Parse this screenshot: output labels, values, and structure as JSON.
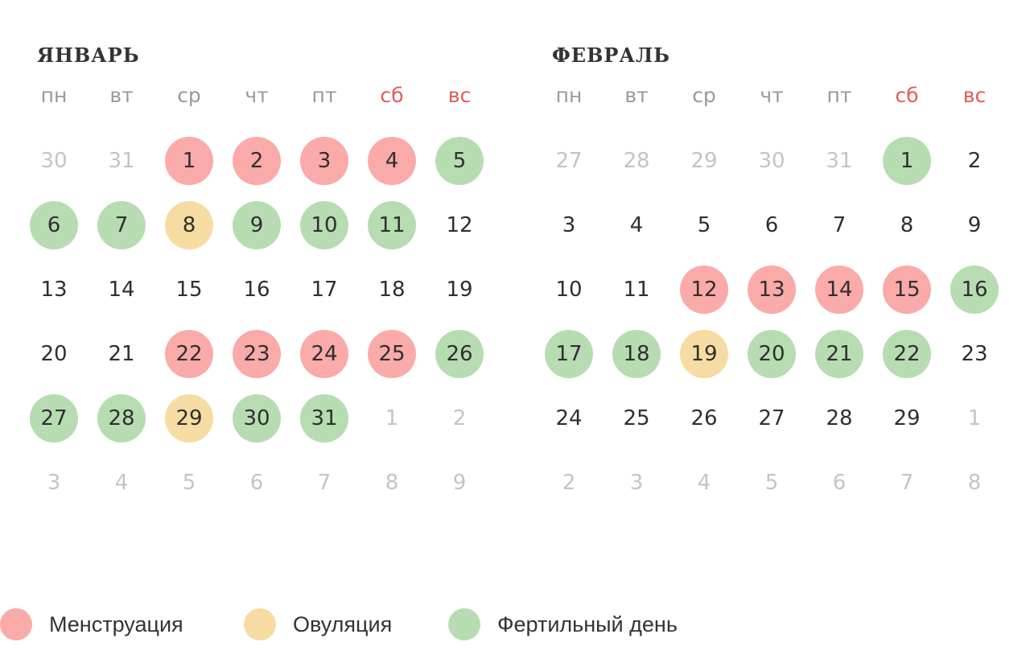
{
  "colors": {
    "menstruation": "#f9aaa9",
    "ovulation": "#f6dca2",
    "fertile": "#b7dcb2",
    "weekend_label": "#e25a57",
    "weekday_label": "#999999",
    "day_text": "#2f2f2f",
    "other_month_text": "#c4c4c4"
  },
  "weekdays": [
    {
      "label": "пн",
      "weekend": false
    },
    {
      "label": "вт",
      "weekend": false
    },
    {
      "label": "ср",
      "weekend": false
    },
    {
      "label": "чт",
      "weekend": false
    },
    {
      "label": "пт",
      "weekend": false
    },
    {
      "label": "сб",
      "weekend": true
    },
    {
      "label": "вс",
      "weekend": true
    }
  ],
  "months": [
    {
      "title": "ЯНВАРЬ",
      "weeks": [
        [
          {
            "d": "30",
            "other": true
          },
          {
            "d": "31",
            "other": true
          },
          {
            "d": "1",
            "t": "m"
          },
          {
            "d": "2",
            "t": "m"
          },
          {
            "d": "3",
            "t": "m"
          },
          {
            "d": "4",
            "t": "m"
          },
          {
            "d": "5",
            "t": "f"
          }
        ],
        [
          {
            "d": "6",
            "t": "f"
          },
          {
            "d": "7",
            "t": "f"
          },
          {
            "d": "8",
            "t": "o"
          },
          {
            "d": "9",
            "t": "f"
          },
          {
            "d": "10",
            "t": "f"
          },
          {
            "d": "11",
            "t": "f"
          },
          {
            "d": "12"
          }
        ],
        [
          {
            "d": "13"
          },
          {
            "d": "14"
          },
          {
            "d": "15"
          },
          {
            "d": "16"
          },
          {
            "d": "17"
          },
          {
            "d": "18"
          },
          {
            "d": "19"
          }
        ],
        [
          {
            "d": "20"
          },
          {
            "d": "21"
          },
          {
            "d": "22",
            "t": "m"
          },
          {
            "d": "23",
            "t": "m"
          },
          {
            "d": "24",
            "t": "m"
          },
          {
            "d": "25",
            "t": "m"
          },
          {
            "d": "26",
            "t": "f"
          }
        ],
        [
          {
            "d": "27",
            "t": "f"
          },
          {
            "d": "28",
            "t": "f"
          },
          {
            "d": "29",
            "t": "o"
          },
          {
            "d": "30",
            "t": "f"
          },
          {
            "d": "31",
            "t": "f"
          },
          {
            "d": "1",
            "other": true
          },
          {
            "d": "2",
            "other": true
          }
        ],
        [
          {
            "d": "3",
            "other": true
          },
          {
            "d": "4",
            "other": true
          },
          {
            "d": "5",
            "other": true
          },
          {
            "d": "6",
            "other": true
          },
          {
            "d": "7",
            "other": true
          },
          {
            "d": "8",
            "other": true
          },
          {
            "d": "9",
            "other": true
          }
        ]
      ]
    },
    {
      "title": "ФЕВРАЛЬ",
      "weeks": [
        [
          {
            "d": "27",
            "other": true
          },
          {
            "d": "28",
            "other": true
          },
          {
            "d": "29",
            "other": true
          },
          {
            "d": "30",
            "other": true
          },
          {
            "d": "31",
            "other": true
          },
          {
            "d": "1",
            "t": "f"
          },
          {
            "d": "2"
          }
        ],
        [
          {
            "d": "3"
          },
          {
            "d": "4"
          },
          {
            "d": "5"
          },
          {
            "d": "6"
          },
          {
            "d": "7"
          },
          {
            "d": "8"
          },
          {
            "d": "9"
          }
        ],
        [
          {
            "d": "10"
          },
          {
            "d": "11"
          },
          {
            "d": "12",
            "t": "m"
          },
          {
            "d": "13",
            "t": "m"
          },
          {
            "d": "14",
            "t": "m"
          },
          {
            "d": "15",
            "t": "m"
          },
          {
            "d": "16",
            "t": "f"
          }
        ],
        [
          {
            "d": "17",
            "t": "f"
          },
          {
            "d": "18",
            "t": "f"
          },
          {
            "d": "19",
            "t": "o"
          },
          {
            "d": "20",
            "t": "f"
          },
          {
            "d": "21",
            "t": "f"
          },
          {
            "d": "22",
            "t": "f"
          },
          {
            "d": "23"
          }
        ],
        [
          {
            "d": "24"
          },
          {
            "d": "25"
          },
          {
            "d": "26"
          },
          {
            "d": "27"
          },
          {
            "d": "28"
          },
          {
            "d": "29"
          },
          {
            "d": "1",
            "other": true
          }
        ],
        [
          {
            "d": "2",
            "other": true
          },
          {
            "d": "3",
            "other": true
          },
          {
            "d": "4",
            "other": true
          },
          {
            "d": "5",
            "other": true
          },
          {
            "d": "6",
            "other": true
          },
          {
            "d": "7",
            "other": true
          },
          {
            "d": "8",
            "other": true
          }
        ]
      ]
    }
  ],
  "legend": [
    {
      "key": "m",
      "label": "Менструация"
    },
    {
      "key": "o",
      "label": "Овуляция"
    },
    {
      "key": "f",
      "label": "Фертильный день"
    }
  ]
}
